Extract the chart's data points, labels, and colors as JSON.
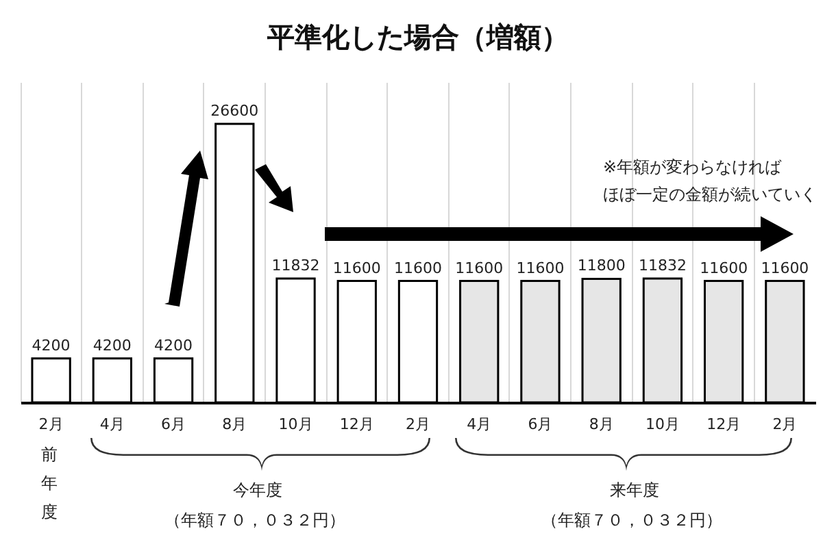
{
  "chart_data": {
    "type": "bar",
    "title": "平準化した場合（増額）",
    "categories": [
      "2月",
      "4月",
      "6月",
      "8月",
      "10月",
      "12月",
      "2月",
      "4月",
      "6月",
      "8月",
      "10月",
      "12月",
      "2月"
    ],
    "values": [
      4200,
      4200,
      4200,
      26600,
      11832,
      11600,
      11600,
      11600,
      11600,
      11800,
      11832,
      11600,
      11600
    ],
    "colors": [
      "#ffffff",
      "#ffffff",
      "#ffffff",
      "#ffffff",
      "#ffffff",
      "#ffffff",
      "#ffffff",
      "#e6e6e6",
      "#e6e6e6",
      "#e6e6e6",
      "#e6e6e6",
      "#e6e6e6",
      "#e6e6e6"
    ],
    "data_labels": true,
    "grid": "x",
    "annotations": [
      "※年額が変わらなければ",
      "ほぼ一定の金額が続いていく",
      "前年度",
      "今年度",
      "（年額７０，０３２円）",
      "来年度",
      "（年額７０，０３２円）"
    ]
  }
}
